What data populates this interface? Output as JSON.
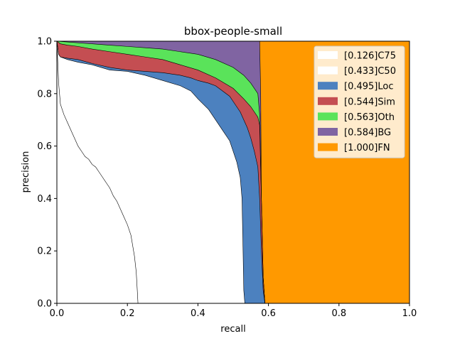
{
  "chart_data": {
    "type": "area",
    "title": "bbox-people-small",
    "xlabel": "recall",
    "ylabel": "precision",
    "xlim": [
      0,
      1
    ],
    "ylim": [
      0,
      1
    ],
    "xticks": [
      "0.0",
      "0.2",
      "0.4",
      "0.6",
      "0.8",
      "1.0"
    ],
    "yticks": [
      "0.0",
      "0.2",
      "0.4",
      "0.6",
      "0.8",
      "1.0"
    ],
    "grid": false,
    "legend_position": "top-right",
    "series": [
      {
        "name": "[0.126]C75",
        "color": "#ffffff",
        "x": [
          0.0,
          0.005,
          0.01,
          0.02,
          0.03,
          0.04,
          0.05,
          0.06,
          0.07,
          0.08,
          0.09,
          0.1,
          0.11,
          0.12,
          0.13,
          0.14,
          0.15,
          0.16,
          0.17,
          0.18,
          0.19,
          0.2,
          0.21,
          0.215,
          0.22,
          0.225,
          0.228,
          0.23
        ],
        "y": [
          1.0,
          0.84,
          0.76,
          0.72,
          0.69,
          0.66,
          0.63,
          0.6,
          0.58,
          0.56,
          0.55,
          0.53,
          0.52,
          0.5,
          0.48,
          0.46,
          0.44,
          0.41,
          0.39,
          0.36,
          0.33,
          0.3,
          0.26,
          0.22,
          0.18,
          0.12,
          0.05,
          0.0
        ]
      },
      {
        "name": "[0.433]C50",
        "color": "#ffffff",
        "x": [
          0.0,
          0.005,
          0.01,
          0.03,
          0.06,
          0.1,
          0.15,
          0.2,
          0.25,
          0.3,
          0.35,
          0.38,
          0.4,
          0.43,
          0.45,
          0.47,
          0.49,
          0.5,
          0.51,
          0.52,
          0.525,
          0.528,
          0.53,
          0.533
        ],
        "y": [
          1.0,
          0.95,
          0.94,
          0.93,
          0.92,
          0.91,
          0.89,
          0.885,
          0.87,
          0.85,
          0.83,
          0.81,
          0.78,
          0.74,
          0.7,
          0.66,
          0.62,
          0.58,
          0.54,
          0.48,
          0.4,
          0.2,
          0.05,
          0.0
        ]
      },
      {
        "name": "[0.495]Loc",
        "color": "#4c81bf",
        "x": [
          0.0,
          0.005,
          0.01,
          0.03,
          0.06,
          0.1,
          0.15,
          0.2,
          0.25,
          0.3,
          0.35,
          0.38,
          0.4,
          0.43,
          0.45,
          0.47,
          0.49,
          0.5,
          0.51,
          0.52,
          0.53,
          0.54,
          0.55,
          0.56,
          0.57,
          0.575,
          0.58,
          0.585,
          0.59
        ],
        "y": [
          1.0,
          0.95,
          0.94,
          0.935,
          0.93,
          0.915,
          0.9,
          0.89,
          0.885,
          0.88,
          0.87,
          0.86,
          0.85,
          0.84,
          0.83,
          0.81,
          0.79,
          0.77,
          0.75,
          0.73,
          0.7,
          0.67,
          0.63,
          0.58,
          0.52,
          0.4,
          0.2,
          0.05,
          0.0
        ]
      },
      {
        "name": "[0.544]Sim",
        "color": "#c44e52",
        "x": [
          0.0,
          0.01,
          0.03,
          0.06,
          0.1,
          0.15,
          0.2,
          0.25,
          0.3,
          0.35,
          0.4,
          0.45,
          0.5,
          0.53,
          0.55,
          0.57,
          0.575,
          0.58,
          0.585,
          0.59
        ],
        "y": [
          1.0,
          0.99,
          0.985,
          0.98,
          0.97,
          0.96,
          0.95,
          0.94,
          0.93,
          0.91,
          0.89,
          0.86,
          0.82,
          0.78,
          0.75,
          0.71,
          0.68,
          0.4,
          0.1,
          0.0
        ]
      },
      {
        "name": "[0.563]Oth",
        "color": "#5ae35a",
        "x": [
          0.0,
          0.05,
          0.1,
          0.15,
          0.2,
          0.25,
          0.3,
          0.35,
          0.4,
          0.45,
          0.5,
          0.53,
          0.55,
          0.57,
          0.575,
          0.58,
          0.585,
          0.59
        ],
        "y": [
          1.0,
          0.995,
          0.99,
          0.985,
          0.98,
          0.975,
          0.97,
          0.96,
          0.95,
          0.93,
          0.9,
          0.87,
          0.84,
          0.8,
          0.72,
          0.4,
          0.1,
          0.0
        ]
      },
      {
        "name": "[0.584]BG",
        "color": "#8064a2",
        "x": [
          0.0,
          0.575,
          0.578,
          0.58,
          0.585,
          0.59
        ],
        "y": [
          1.0,
          1.0,
          0.8,
          0.4,
          0.1,
          0.0
        ]
      },
      {
        "name": "[1.000]FN",
        "color": "#ff9900",
        "x": [
          0.0,
          1.0
        ],
        "y": [
          1.0,
          1.0
        ]
      }
    ]
  }
}
